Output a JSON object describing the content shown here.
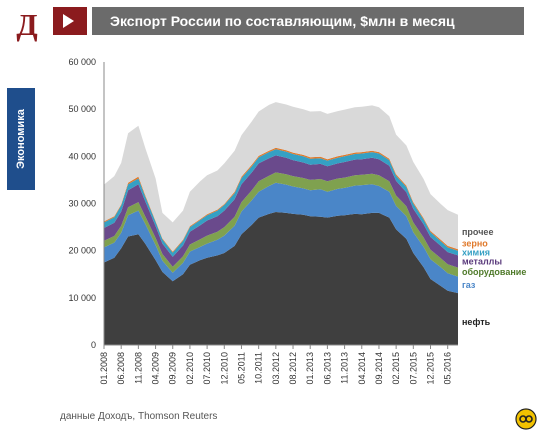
{
  "header": {
    "logo_letter": "Д",
    "title": "Экспорт России по составляющим, $млн в месяц"
  },
  "side_tab": {
    "label": "Экономика"
  },
  "footer": {
    "source": "данные Доходъ,  Thomson Reuters"
  },
  "chart_data": {
    "type": "area",
    "stacked": true,
    "title": "Экспорт России по составляющим, $млн в месяц",
    "ylim": [
      0,
      60000
    ],
    "yticks": [
      0,
      10000,
      20000,
      30000,
      40000,
      50000,
      60000
    ],
    "ytick_labels": [
      "0",
      "10 000",
      "20 000",
      "30 000",
      "40 000",
      "50 000",
      "60 000"
    ],
    "x_tick_labels": [
      "01.2008",
      "06.2008",
      "11.2008",
      "04.2009",
      "09.2009",
      "02.2010",
      "07.2010",
      "12.2010",
      "05.2011",
      "10.2011",
      "03.2012",
      "08.2012",
      "01.2013",
      "06.2013",
      "11.2013",
      "04.2014",
      "09.2014",
      "02.2015",
      "07.2015",
      "12.2015",
      "05.2016"
    ],
    "grid": false,
    "legend": "right, labels next to each area",
    "x": [
      "01.2008",
      "04.2008",
      "06.2008",
      "08.2008",
      "11.2008",
      "01.2009",
      "04.2009",
      "06.2009",
      "09.2009",
      "12.2009",
      "02.2010",
      "05.2010",
      "07.2010",
      "10.2010",
      "12.2010",
      "03.2011",
      "05.2011",
      "08.2011",
      "10.2011",
      "01.2012",
      "03.2012",
      "06.2012",
      "08.2012",
      "11.2012",
      "01.2013",
      "04.2013",
      "06.2013",
      "09.2013",
      "11.2013",
      "02.2014",
      "04.2014",
      "07.2014",
      "09.2014",
      "12.2014",
      "02.2015",
      "05.2015",
      "07.2015",
      "10.2015",
      "12.2015",
      "03.2016",
      "05.2016",
      "08.2016"
    ],
    "series": [
      {
        "name": "нефть",
        "color": "#3f3f3f",
        "values": [
          17500,
          18500,
          20500,
          23000,
          23500,
          21500,
          18000,
          15500,
          13500,
          15000,
          17000,
          18000,
          18500,
          19000,
          19500,
          21000,
          23500,
          25500,
          27000,
          27800,
          28200,
          28000,
          27800,
          27600,
          27300,
          27200,
          27000,
          27400,
          27500,
          27800,
          27700,
          28000,
          28000,
          27000,
          24500,
          22500,
          19500,
          16500,
          14000,
          12500,
          11500,
          11000
        ]
      },
      {
        "name": "газ",
        "color": "#4a86c8",
        "values": [
          3200,
          3200,
          3300,
          4500,
          5000,
          4200,
          3200,
          2400,
          1800,
          2400,
          2800,
          2800,
          3000,
          3300,
          3700,
          4300,
          4800,
          5200,
          5500,
          5900,
          6200,
          6000,
          5800,
          5600,
          5500,
          5800,
          5500,
          5700,
          5800,
          6000,
          6200,
          6100,
          5700,
          5500,
          5000,
          4800,
          4400,
          4300,
          4200,
          4000,
          3700,
          3500
        ]
      },
      {
        "name": "оборудование",
        "color": "#7fa14f",
        "values": [
          1400,
          1400,
          1500,
          1700,
          1800,
          1600,
          1500,
          1400,
          1300,
          1400,
          1500,
          1600,
          1700,
          1700,
          1800,
          1900,
          2000,
          2100,
          2200,
          2200,
          2200,
          2200,
          2200,
          2200,
          2200,
          2200,
          2200,
          2200,
          2200,
          2200,
          2200,
          2200,
          2300,
          2200,
          2200,
          2100,
          2100,
          2000,
          2000,
          1900,
          1900,
          1900
        ]
      },
      {
        "name": "металлы",
        "color": "#6a4a8c",
        "values": [
          2700,
          2800,
          3000,
          3600,
          3800,
          3200,
          2500,
          2200,
          2100,
          2300,
          2700,
          3000,
          3200,
          3300,
          3500,
          3700,
          3800,
          3800,
          3800,
          3700,
          3600,
          3500,
          3400,
          3300,
          3200,
          3200,
          3200,
          3200,
          3300,
          3300,
          3300,
          3400,
          3400,
          3300,
          3100,
          3000,
          2900,
          2800,
          2700,
          2600,
          2600,
          2600
        ]
      },
      {
        "name": "химия",
        "color": "#35a0c4",
        "values": [
          1200,
          1200,
          1300,
          1300,
          1200,
          1000,
          900,
          900,
          900,
          1000,
          1000,
          1100,
          1100,
          1200,
          1200,
          1300,
          1300,
          1300,
          1300,
          1300,
          1300,
          1300,
          1300,
          1300,
          1300,
          1200,
          1200,
          1200,
          1200,
          1200,
          1200,
          1200,
          1200,
          1200,
          1100,
          1100,
          1100,
          1000,
          1000,
          1000,
          1000,
          1000
        ]
      },
      {
        "name": "зерно",
        "color": "#e07a2c",
        "values": [
          200,
          200,
          200,
          300,
          400,
          300,
          200,
          200,
          200,
          200,
          200,
          200,
          200,
          200,
          200,
          300,
          300,
          300,
          300,
          300,
          300,
          300,
          300,
          300,
          300,
          300,
          300,
          300,
          300,
          300,
          300,
          300,
          300,
          300,
          300,
          300,
          300,
          300,
          300,
          300,
          300,
          300
        ]
      },
      {
        "name": "прочее",
        "color": "#d9d9d9",
        "values": [
          7800,
          8500,
          8800,
          10500,
          10800,
          10000,
          9000,
          5400,
          6200,
          6200,
          7300,
          8000,
          8300,
          8300,
          8600,
          8700,
          8800,
          9200,
          9400,
          9700,
          9700,
          9700,
          9700,
          9700,
          9700,
          9700,
          9600,
          9600,
          9600,
          9600,
          9600,
          9600,
          9500,
          9000,
          8400,
          8500,
          8500,
          8300,
          7800,
          7600,
          7600,
          7300
        ]
      }
    ]
  }
}
